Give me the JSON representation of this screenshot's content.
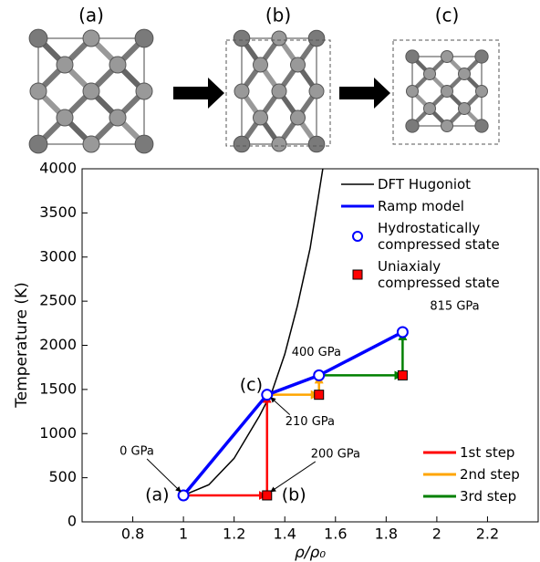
{
  "structure_labels": [
    "(a)",
    "(b)",
    "(c)"
  ],
  "chart_data": {
    "type": "line",
    "xlabel": "ρ/ρ₀",
    "ylabel": "Temperature (K)",
    "xlim": [
      0.6,
      2.4
    ],
    "xticks": [
      0.8,
      1.0,
      1.2,
      1.4,
      1.6,
      1.8,
      2.0,
      2.2
    ],
    "ylim": [
      0,
      4000
    ],
    "yticks": [
      0,
      500,
      1000,
      1500,
      2000,
      2500,
      3000,
      3500,
      4000
    ],
    "series": [
      {
        "name": "DFT Hugoniot",
        "color": "#000000",
        "style": "line",
        "legend_loc": "upper right",
        "x": [
          1.0,
          1.1,
          1.2,
          1.3,
          1.35,
          1.4,
          1.45,
          1.5,
          1.55
        ],
        "y": [
          300,
          420,
          720,
          1200,
          1480,
          1900,
          2450,
          3100,
          4000
        ]
      },
      {
        "name": "Ramp model",
        "color": "#0000ff",
        "style": "thick-line",
        "legend_loc": "upper right",
        "x": [
          1.0,
          1.33,
          1.535,
          1.865
        ],
        "y": [
          300,
          1440,
          1660,
          2150
        ]
      },
      {
        "name": "Hydrostatically compressed state",
        "color": "#0000ff",
        "style": "circle",
        "legend_loc": "upper right",
        "x": [
          1.0,
          1.33,
          1.535,
          1.865
        ],
        "y": [
          300,
          1440,
          1660,
          2150
        ]
      },
      {
        "name": "Uniaxialy compressed state",
        "color": "#ff0000",
        "style": "square",
        "legend_loc": "upper right",
        "x": [
          1.33,
          1.535,
          1.865
        ],
        "y": [
          300,
          1440,
          1660
        ]
      },
      {
        "name": "1st step",
        "color": "#ff0000",
        "style": "arrow",
        "legend_loc": "lower right",
        "x": [
          1.0,
          1.33,
          1.33
        ],
        "y": [
          300,
          300,
          1440
        ]
      },
      {
        "name": "2nd step",
        "color": "#ffa500",
        "style": "arrow",
        "legend_loc": "lower right",
        "x": [
          1.33,
          1.535,
          1.535
        ],
        "y": [
          1440,
          1440,
          1660
        ]
      },
      {
        "name": "3rd step",
        "color": "#008000",
        "style": "arrow",
        "legend_loc": "lower right",
        "x": [
          1.535,
          1.865,
          1.865
        ],
        "y": [
          1660,
          1660,
          2150
        ]
      }
    ],
    "annotations": [
      {
        "text": "0 GPa",
        "xy": [
          1.0,
          300
        ]
      },
      {
        "text": "200 GPa",
        "xy": [
          1.33,
          300
        ]
      },
      {
        "text": "210 GPa",
        "xy": [
          1.33,
          1440
        ]
      },
      {
        "text": "400 GPa",
        "xy": [
          1.535,
          1660
        ]
      },
      {
        "text": "815 GPa",
        "xy": [
          1.865,
          2150
        ]
      },
      {
        "text": "(a)",
        "xy": [
          1.0,
          300
        ]
      },
      {
        "text": "(b)",
        "xy": [
          1.33,
          300
        ]
      },
      {
        "text": "(c)",
        "xy": [
          1.33,
          1440
        ]
      }
    ]
  }
}
